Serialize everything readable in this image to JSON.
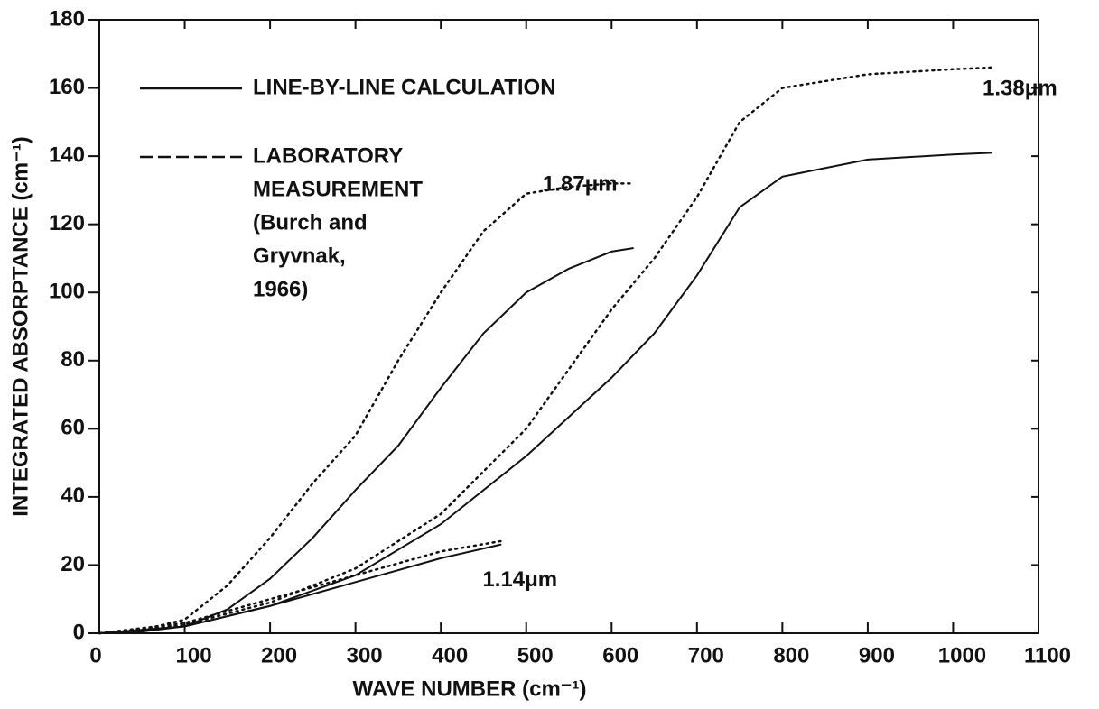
{
  "chart_data": {
    "type": "line",
    "xlabel": "WAVE NUMBER (cm⁻¹)",
    "ylabel": "INTEGRATED ABSORPTANCE (cm⁻¹)",
    "xlim": [
      0,
      1100
    ],
    "ylim": [
      0,
      180
    ],
    "xticks": [
      0,
      100,
      200,
      300,
      400,
      500,
      600,
      700,
      800,
      900,
      1000,
      1100
    ],
    "yticks": [
      0,
      20,
      40,
      60,
      80,
      100,
      120,
      140,
      160,
      180
    ],
    "color": "#111111",
    "legend": [
      {
        "style": "solid",
        "lines": [
          "LINE-BY-LINE CALCULATION"
        ]
      },
      {
        "style": "dashed",
        "lines": [
          "LABORATORY",
          "MEASUREMENT",
          "(Burch and",
          "Gryvnak,",
          "1966)"
        ]
      }
    ],
    "series": [
      {
        "label": "1.87μm",
        "x": [
          0,
          50,
          100,
          150,
          200,
          250,
          300,
          350,
          400,
          450,
          500,
          550,
          600,
          625
        ],
        "calculated": [
          0,
          0.5,
          2,
          7,
          16,
          28,
          42,
          55,
          72,
          88,
          100,
          107,
          112,
          113
        ],
        "measured": [
          0,
          1,
          4,
          14,
          28,
          44,
          58,
          80,
          100,
          118,
          129,
          131,
          132,
          132
        ]
      },
      {
        "label": "1.38μm",
        "x": [
          0,
          100,
          200,
          300,
          400,
          500,
          600,
          650,
          700,
          750,
          800,
          900,
          1000,
          1045
        ],
        "calculated": [
          0,
          2,
          8,
          17,
          32,
          52,
          75,
          88,
          105,
          125,
          134,
          139,
          140.5,
          141
        ],
        "measured": [
          0,
          2.5,
          9,
          19,
          35,
          60,
          95,
          110,
          128,
          150,
          160,
          164,
          165.5,
          166
        ]
      },
      {
        "label": "1.14μm",
        "x": [
          0,
          100,
          200,
          300,
          400,
          470
        ],
        "calculated": [
          0,
          2,
          8,
          15,
          22,
          26
        ],
        "measured": [
          0,
          3,
          10,
          17,
          24,
          27
        ]
      }
    ]
  }
}
